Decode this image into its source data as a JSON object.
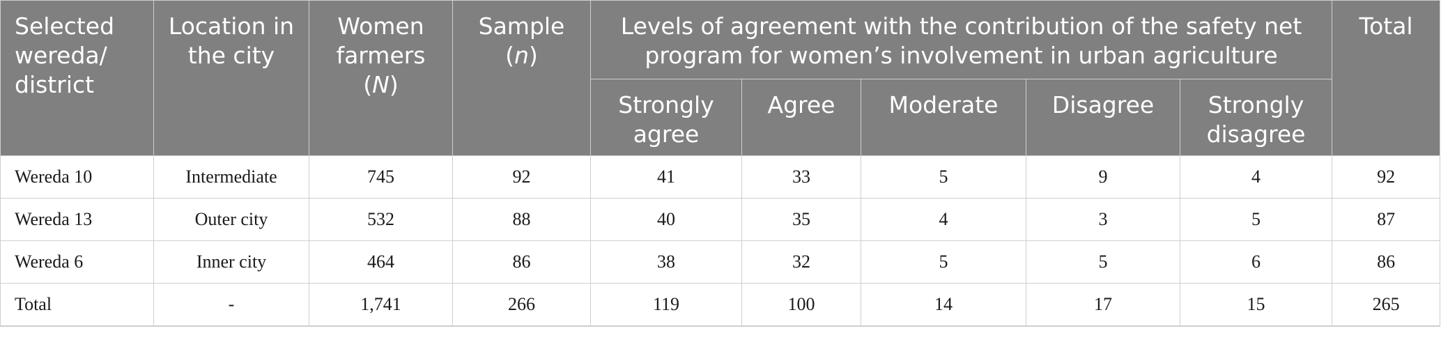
{
  "headers": {
    "district": "Selected wereda/ district",
    "location": "Location in the city",
    "women_farmers": "Women farmers",
    "women_farmers_sym": "N",
    "sample": "Sample",
    "sample_sym": "n",
    "group": "Levels of agreement with the contribution of the safety net program for women’s involvement in urban agriculture",
    "strongly_agree": "Strongly agree",
    "agree": "Agree",
    "moderate": "Moderate",
    "disagree": "Disagree",
    "strongly_disagree": "Strongly disagree",
    "total": "Total"
  },
  "rows": [
    {
      "district": "Wereda 10",
      "location": "Intermediate",
      "women_farmers": "745",
      "sample": "92",
      "strongly_agree": "41",
      "agree": "33",
      "moderate": "5",
      "disagree": "9",
      "strongly_disagree": "4",
      "total": "92"
    },
    {
      "district": "Wereda 13",
      "location": "Outer city",
      "women_farmers": "532",
      "sample": "88",
      "strongly_agree": "40",
      "agree": "35",
      "moderate": "4",
      "disagree": "3",
      "strongly_disagree": "5",
      "total": "87"
    },
    {
      "district": "Wereda 6",
      "location": "Inner city",
      "women_farmers": "464",
      "sample": "86",
      "strongly_agree": "38",
      "agree": "32",
      "moderate": "5",
      "disagree": "5",
      "strongly_disagree": "6",
      "total": "86"
    },
    {
      "district": "Total",
      "location": "-",
      "women_farmers": "1,741",
      "sample": "266",
      "strongly_agree": "119",
      "agree": "100",
      "moderate": "14",
      "disagree": "17",
      "strongly_disagree": "15",
      "total": "265"
    }
  ]
}
